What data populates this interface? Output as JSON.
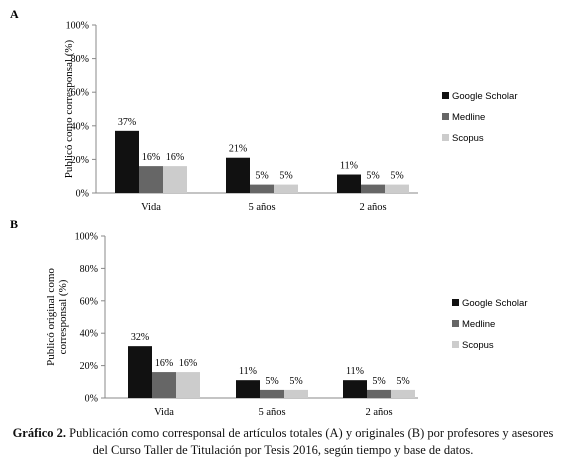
{
  "chart_data": [
    {
      "type": "bar",
      "panel_label": "A",
      "ylabel": "Publicó como corresponsal (%)",
      "categories": [
        "Vida",
        "5 años",
        "2 años"
      ],
      "yticks": [
        "0%",
        "20%",
        "40%",
        "60%",
        "80%",
        "100%"
      ],
      "ylim": [
        0,
        100
      ],
      "legend_position": "right",
      "series": [
        {
          "name": "Google Scholar",
          "color": "#111111",
          "values": [
            37,
            21,
            11
          ],
          "labels": [
            "37%",
            "21%",
            "11%"
          ]
        },
        {
          "name": "Medline",
          "color": "#666666",
          "values": [
            16,
            5,
            5
          ],
          "labels": [
            "16%",
            "5%",
            "5%"
          ]
        },
        {
          "name": "Scopus",
          "color": "#cccccc",
          "values": [
            16,
            5,
            5
          ],
          "labels": [
            "16%",
            "5%",
            "5%"
          ]
        }
      ]
    },
    {
      "type": "bar",
      "panel_label": "B",
      "ylabel": [
        "Publicó original como",
        "corresponsal (%)"
      ],
      "categories": [
        "Vida",
        "5 años",
        "2 años"
      ],
      "yticks": [
        "0%",
        "20%",
        "40%",
        "60%",
        "80%",
        "100%"
      ],
      "ylim": [
        0,
        100
      ],
      "legend_position": "right",
      "series": [
        {
          "name": "Google Scholar",
          "color": "#111111",
          "values": [
            32,
            11,
            11
          ],
          "labels": [
            "32%",
            "11%",
            "11%"
          ]
        },
        {
          "name": "Medline",
          "color": "#666666",
          "values": [
            16,
            5,
            5
          ],
          "labels": [
            "16%",
            "5%",
            "5%"
          ]
        },
        {
          "name": "Scopus",
          "color": "#cccccc",
          "values": [
            16,
            5,
            5
          ],
          "labels": [
            "16%",
            "5%",
            "5%"
          ]
        }
      ]
    }
  ],
  "caption": {
    "prefix": "Gráfico 2.",
    "text": " Publicación como corresponsal de artículos totales (A) y originales (B) por profesores y asesores del Curso Taller de Titulación por Tesis 2016, según tiempo y base de datos."
  }
}
